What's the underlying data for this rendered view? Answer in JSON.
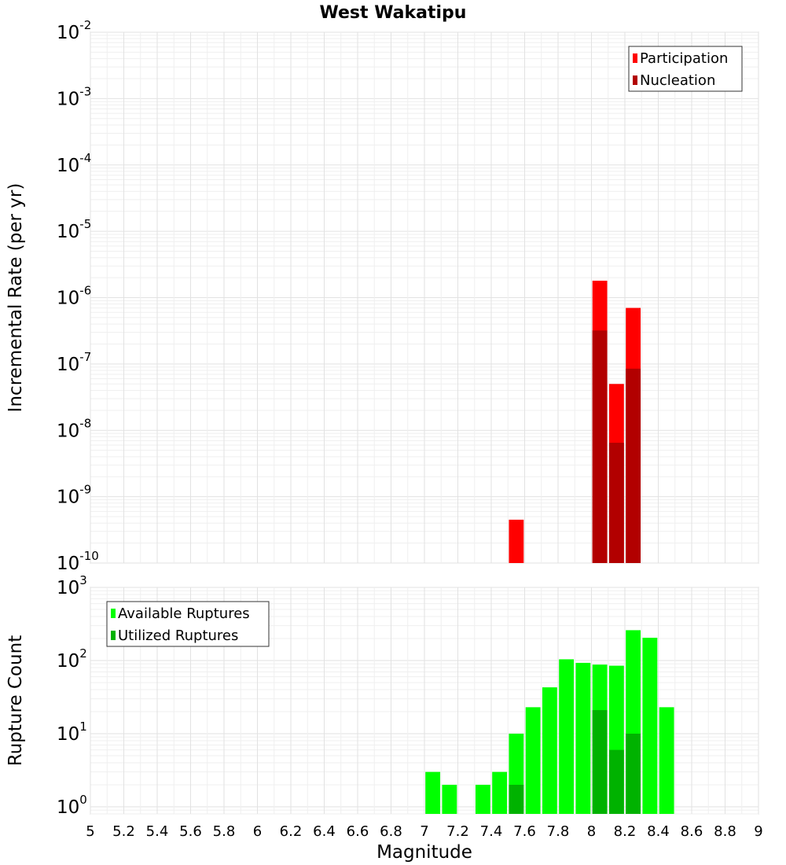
{
  "chart_data": [
    {
      "type": "bar",
      "title": "West Wakatipu",
      "xlabel": "",
      "ylabel": "Incremental Rate (per yr)",
      "y_scale": "log",
      "ylim": [
        1e-10,
        0.01
      ],
      "xlim": [
        5,
        9
      ],
      "grid": true,
      "legend_position": "top-right",
      "bar_width": 0.1,
      "series": [
        {
          "name": "Participation",
          "color": "#ff0000",
          "x": [
            7.55,
            8.05,
            8.15,
            8.25
          ],
          "values": [
            4.5e-10,
            1.8e-06,
            5e-08,
            7e-07
          ]
        },
        {
          "name": "Nucleation",
          "color": "#b20000",
          "x": [
            8.05,
            8.15,
            8.25
          ],
          "values": [
            3.2e-07,
            6.5e-09,
            8.5e-08
          ]
        }
      ]
    },
    {
      "type": "bar",
      "title": "",
      "xlabel": "Magnitude",
      "ylabel": "Rupture Count",
      "y_scale": "log",
      "ylim": [
        0.8,
        1000
      ],
      "xlim": [
        5,
        9
      ],
      "grid": true,
      "legend_position": "top-left",
      "bar_width": 0.1,
      "x_ticks": [
        "5",
        "5.2",
        "5.4",
        "5.6",
        "5.8",
        "6",
        "6.2",
        "6.4",
        "6.6",
        "6.8",
        "7",
        "7.2",
        "7.4",
        "7.6",
        "7.8",
        "8",
        "8.2",
        "8.4",
        "8.6",
        "8.8",
        "9"
      ],
      "series": [
        {
          "name": "Available Ruptures",
          "color": "#00ff00",
          "x": [
            7.05,
            7.15,
            7.35,
            7.45,
            7.55,
            7.65,
            7.75,
            7.85,
            7.95,
            8.05,
            8.15,
            8.25,
            8.35,
            8.45
          ],
          "values": [
            3,
            2,
            2,
            3,
            10,
            23,
            43,
            104,
            93,
            88,
            85,
            260,
            205,
            23
          ]
        },
        {
          "name": "Utilized Ruptures",
          "color": "#00b200",
          "x": [
            7.55,
            8.05,
            8.15,
            8.25
          ],
          "values": [
            2,
            21,
            6,
            10
          ]
        }
      ]
    }
  ]
}
